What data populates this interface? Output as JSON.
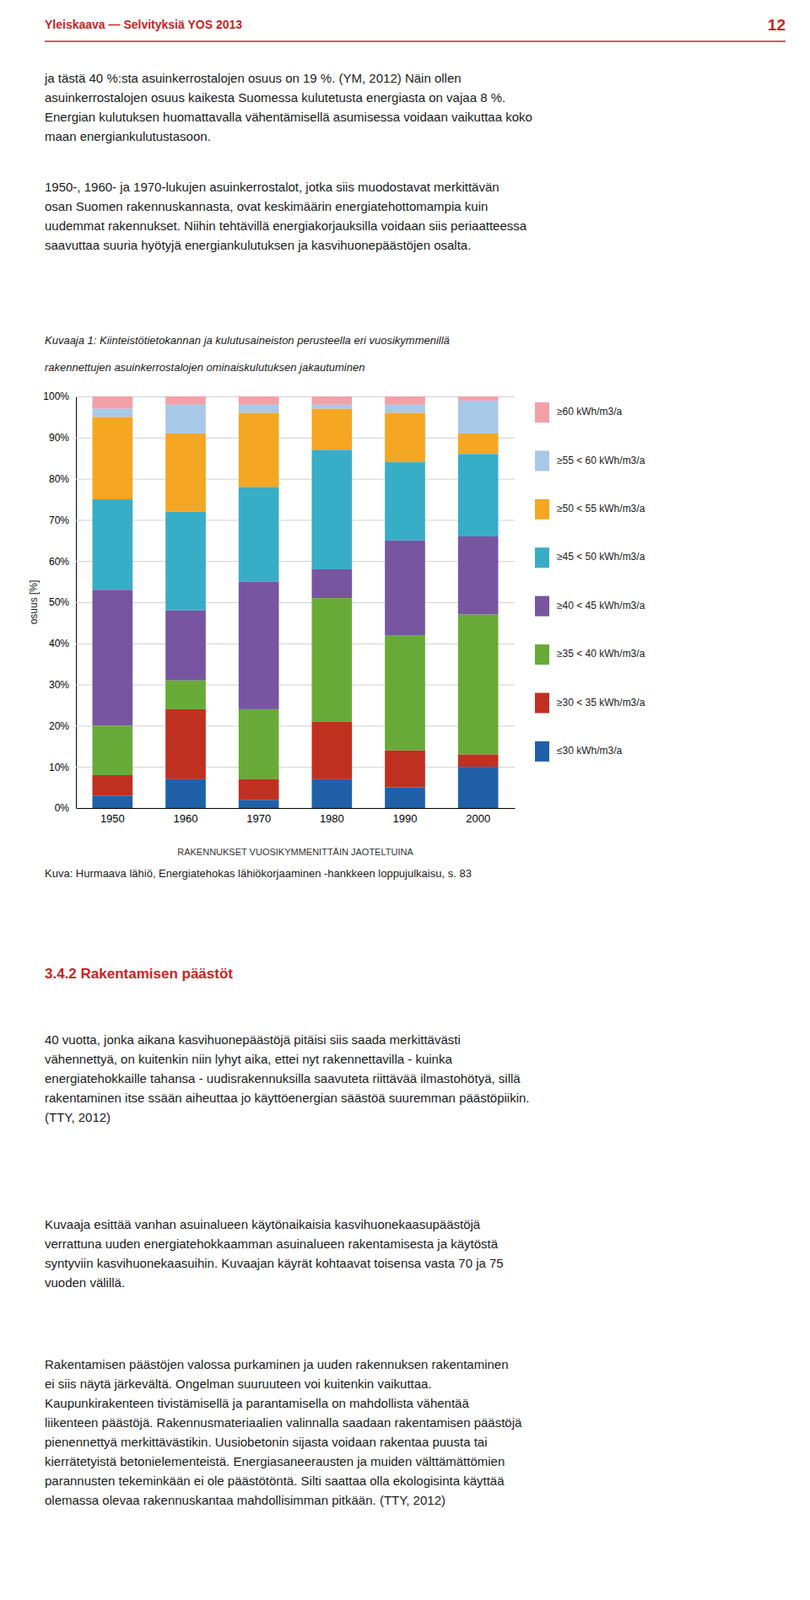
{
  "page": {
    "header": "Yleiskaava — Selvityksiä YOS 2013",
    "page_number": "12",
    "color": "#cc2222",
    "body_1": "ja tästä 40 %:sta asuinkerrostalojen osuus on 19 %. (YM, 2012) Näin ollen\nasuinkerrostalojen osuus kaikesta Suomessa kulutetusta energiasta on vajaa 8 %.\nEnergian kulutuksen huomattavalla vähentämisellä asumisessa voidaan vaikuttaa koko\nmaan energiankulutustasoon.",
    "body_2": "1950-, 1960- ja 1970-lukujen asuinkerrostalot, jotka siis muodostavat merkittävän\nosan Suomen rakennuskannasta, ovat keskimäärin energiatehottomampia kuin\nuudemmat rakennukset. Niihin tehtävillä energiakorjauksilla voidaan siis periaatteessa\nsaavuttaa suuria hyötyjä energiankulutuksen ja kasvihuonepäästöjen osalta.",
    "caption": "Kuva: Hurmaava lähiö, Energiatehokas lähiökorjaaminen -hankkeen loppujulkaisu, s. 83",
    "section_header": "3.4.2 Rakentamisen päästöt",
    "body_3": "40 vuotta, jonka aikana kasvihuonepäästöjä pitäisi siis saada merkittävästi\nvähennettyä, on kuitenkin niin lyhyt aika, ettei nyt rakennettavilla - kuinka\nenergiatehokkaille tahansa - uudisrakennuksilla saavuteta riittävää ilmastohötyä, sillä\nrakentaminen itse ssään aiheuttaa jo käyttöenergian säästöä suuremman päästöpiikin.\n(TTY, 2012)",
    "body_4": "Kuvaaja esittää vanhan asuinalueen käytönaikaisia kasvihuonekaasupäästöjä\nverrattuna uuden energiatehokkaamman asuinalueen rakentamisesta ja käytöstä\nsyntyviin kasvihuonekaasuihin. Kuvaajan käyrät kohtaavat toisensa vasta 70 ja 75\nvuoden välillä.",
    "body_5": "Rakentamisen päästöjen valossa purkaminen ja uuden rakennuksen rakentaminen\nei siis näytä järkevältä. Ongelman suuruuteen voi kuitenkin vaikuttaa.\nKaupunkirakenteen tivistämisellä ja parantamisella on mahdollista vähentää\nliikenteen päästöjä. Rakennusmateriaalien valinnalla saadaan rakentamisen päästöjä\npienennettyä merkittävästikin. Uusiobetonin sijasta voidaan rakentaa puusta tai\nkierrätetyistä betonielementeistä. Energiasaneerausten ja muiden välttämättömien\nparannusten tekeminkään ei ole päästötöntä. Silti saattaa olla ekologisinta käyttää\nolemassa olevaa rakennuskantaa mahdollisimman pitkään. (TTY, 2012)"
  },
  "chart_data": {
    "type": "bar",
    "stacked": true,
    "title": "Kuvaaja 1: Kiinteistötietokannan ja kulutusaineiston perusteella eri vuosikymmenillä",
    "subtitle": "rakennettujen asuinkerrostalojen ominaiskulutuksen jakautuminen",
    "y_label": "osuus [%]",
    "x_label": "RAKENNUKSET VUOSIKYMMENITTÄIN JAOTELTUINA",
    "categories": [
      "1950",
      "1960",
      "1970",
      "1980",
      "1990",
      "2000"
    ],
    "series": [
      {
        "name": "≥60 kWh/m3/a",
        "color": "#f2a0a8",
        "values": [
          3,
          2,
          2,
          2,
          2,
          1
        ]
      },
      {
        "name": "≥55 < 60 kWh/m3/a",
        "color": "#a8c8e8",
        "values": [
          2,
          7,
          2,
          1,
          2,
          8
        ]
      },
      {
        "name": "≥50 < 55 kWh/m3/a",
        "color": "#f5a623",
        "values": [
          20,
          19,
          18,
          10,
          12,
          5
        ]
      },
      {
        "name": "≥45 < 50 kWh/m3/a",
        "color": "#38adc8",
        "values": [
          22,
          24,
          23,
          29,
          19,
          20
        ]
      },
      {
        "name": "≥40 < 45 kWh/m3/a",
        "color": "#7855a0",
        "values": [
          33,
          17,
          31,
          7,
          23,
          19
        ]
      },
      {
        "name": "≥35 < 40 kWh/m3/a",
        "color": "#68aa38",
        "values": [
          12,
          7,
          17,
          30,
          28,
          34
        ]
      },
      {
        "name": "≥30 < 35 kWh/m3/a",
        "color": "#c03020",
        "values": [
          5,
          17,
          5,
          14,
          9,
          3
        ]
      },
      {
        "name": "≤30 kWh/m3/a",
        "color": "#2060a8",
        "values": [
          3,
          7,
          2,
          7,
          5,
          10
        ]
      }
    ],
    "ylim": [
      0,
      100
    ],
    "yticks": [
      {
        "value": 0,
        "label": "0%"
      },
      {
        "value": 10,
        "label": "10%"
      },
      {
        "value": 20,
        "label": "20%"
      },
      {
        "value": 30,
        "label": "30%"
      },
      {
        "value": 40,
        "label": "40%"
      },
      {
        "value": 50,
        "label": "50%"
      },
      {
        "value": 60,
        "label": "60%"
      },
      {
        "value": 70,
        "label": "70%"
      },
      {
        "value": 80,
        "label": "80%"
      },
      {
        "value": 90,
        "label": "90%"
      },
      {
        "value": 100,
        "label": "100%"
      }
    ],
    "grid": true,
    "legend": "right"
  }
}
